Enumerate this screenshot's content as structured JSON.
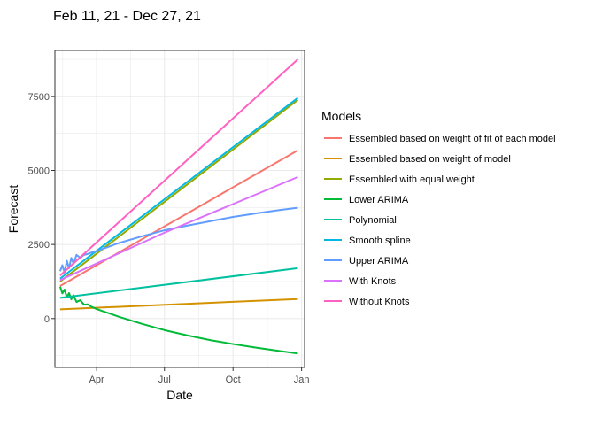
{
  "chart_data": {
    "type": "line",
    "title": "Feb 11, 21 - Dec 27, 21",
    "xlabel": "Date",
    "ylabel": "Forecast",
    "x_ticks": [
      "Apr",
      "Jul",
      "Oct",
      "Jan"
    ],
    "x_tick_dates": [
      "2021-04-01",
      "2021-07-01",
      "2021-10-01",
      "2022-01-01"
    ],
    "x_range": [
      "2021-02-04",
      "2022-01-05"
    ],
    "y_ticks": [
      0,
      2500,
      5000,
      7500
    ],
    "ylim": [
      -1650,
      9050
    ],
    "grid": true,
    "legend": {
      "title": "Models",
      "position": "right"
    },
    "series": [
      {
        "name": "Essembled based on weight of fit of each model",
        "color": "#F8766D",
        "x": [
          "2021-02-11",
          "2021-12-27"
        ],
        "y": [
          1100,
          5680
        ]
      },
      {
        "name": "Essembled based on weight of model",
        "color": "#D39200",
        "x": [
          "2021-02-11",
          "2021-12-27"
        ],
        "y": [
          310,
          660
        ]
      },
      {
        "name": "Essembled with equal weight",
        "color": "#93AA00",
        "x": [
          "2021-02-11",
          "2021-12-27"
        ],
        "y": [
          1250,
          7380
        ]
      },
      {
        "name": "Lower ARIMA",
        "color": "#00BA38",
        "x": [
          "2021-02-11",
          "2021-02-14",
          "2021-02-17",
          "2021-02-20",
          "2021-02-23",
          "2021-02-26",
          "2021-03-01",
          "2021-03-05",
          "2021-03-10",
          "2021-03-15",
          "2021-03-20",
          "2021-03-25",
          "2021-04-01",
          "2021-05-01",
          "2021-06-01",
          "2021-07-01",
          "2021-08-01",
          "2021-09-01",
          "2021-10-01",
          "2021-11-01",
          "2021-12-01",
          "2021-12-27"
        ],
        "y": [
          1080,
          850,
          980,
          720,
          860,
          650,
          790,
          560,
          620,
          470,
          480,
          400,
          320,
          60,
          -180,
          -390,
          -570,
          -730,
          -860,
          -980,
          -1090,
          -1180
        ]
      },
      {
        "name": "Polynomial",
        "color": "#00C19F",
        "x": [
          "2021-02-11",
          "2021-12-27"
        ],
        "y": [
          700,
          1700
        ]
      },
      {
        "name": "Smooth spline",
        "color": "#00B9E3",
        "x": [
          "2021-02-11",
          "2021-12-27"
        ],
        "y": [
          1350,
          7450
        ]
      },
      {
        "name": "Upper ARIMA",
        "color": "#619CFF",
        "x": [
          "2021-02-11",
          "2021-02-14",
          "2021-02-17",
          "2021-02-20",
          "2021-02-23",
          "2021-02-26",
          "2021-03-01",
          "2021-03-05",
          "2021-03-10",
          "2021-03-15",
          "2021-03-20",
          "2021-03-25",
          "2021-04-01",
          "2021-05-01",
          "2021-06-01",
          "2021-07-01",
          "2021-08-01",
          "2021-09-01",
          "2021-10-01",
          "2021-11-01",
          "2021-12-01",
          "2021-12-27"
        ],
        "y": [
          1600,
          1800,
          1550,
          1950,
          1700,
          2050,
          1850,
          2150,
          2050,
          2150,
          2180,
          2230,
          2280,
          2550,
          2780,
          2980,
          3140,
          3290,
          3430,
          3550,
          3660,
          3740
        ]
      },
      {
        "name": "With Knots",
        "color": "#DB72FB",
        "x": [
          "2021-02-11",
          "2021-07-01",
          "2021-12-27"
        ],
        "y": [
          1300,
          2900,
          4780
        ]
      },
      {
        "name": "Without Knots",
        "color": "#FF61C3",
        "x": [
          "2021-02-11",
          "2021-12-27"
        ],
        "y": [
          1450,
          8750
        ]
      }
    ]
  }
}
